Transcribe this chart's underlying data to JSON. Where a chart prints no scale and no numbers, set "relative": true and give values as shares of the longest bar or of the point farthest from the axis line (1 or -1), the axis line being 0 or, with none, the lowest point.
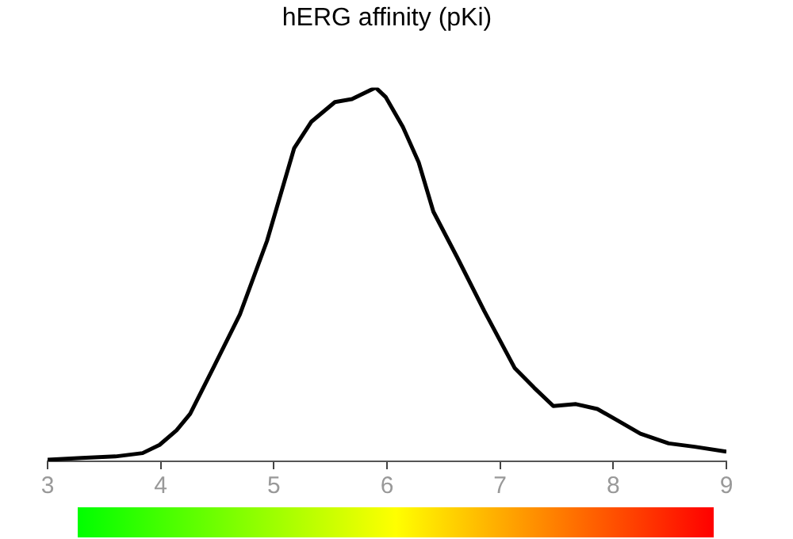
{
  "chart_data": {
    "type": "line",
    "title": "hERG affinity (pKi)",
    "relative": true,
    "color": "#000000",
    "grid": false,
    "legend": false,
    "marker": "none",
    "line_style": "solid",
    "x": [
      3.0,
      3.3,
      3.6,
      3.84,
      3.99,
      4.14,
      4.26,
      4.47,
      4.7,
      4.94,
      5.18,
      5.33,
      5.54,
      5.69,
      5.9,
      5.99,
      6.14,
      6.28,
      6.41,
      6.62,
      6.86,
      7.13,
      7.3,
      7.47,
      7.67,
      7.86,
      8.04,
      8.24,
      8.49,
      8.72,
      9.0
    ],
    "values": [
      0.004,
      0.009,
      0.013,
      0.022,
      0.044,
      0.083,
      0.127,
      0.253,
      0.393,
      0.59,
      0.838,
      0.908,
      0.961,
      0.969,
      1,
      0.974,
      0.895,
      0.8,
      0.668,
      0.546,
      0.402,
      0.249,
      0.197,
      0.148,
      0.153,
      0.14,
      0.109,
      0.074,
      0.048,
      0.039,
      0.026
    ],
    "xlim": [
      3,
      9
    ],
    "xticks": [
      3,
      4,
      5,
      6,
      7,
      8,
      9
    ]
  }
}
